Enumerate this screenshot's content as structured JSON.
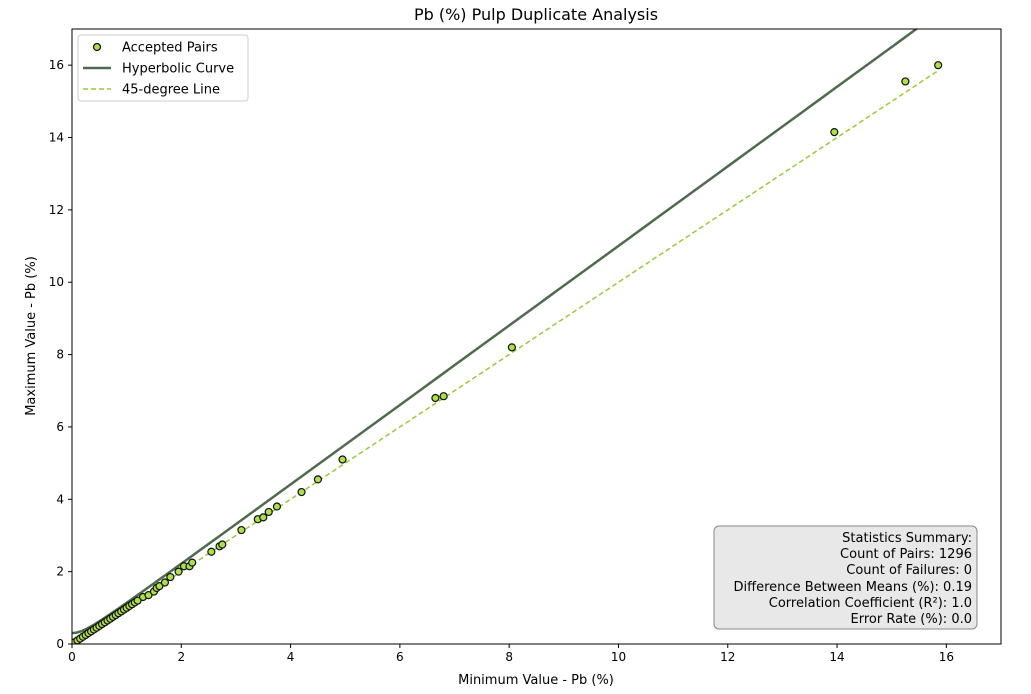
{
  "chart_data": {
    "type": "scatter",
    "title": "Pb (%) Pulp Duplicate Analysis",
    "xlabel": "Minimum Value - Pb (%)",
    "ylabel": "Maximum Value - Pb (%)",
    "xlim": [
      0,
      17
    ],
    "ylim": [
      0,
      17
    ],
    "xticks": [
      0,
      2,
      4,
      6,
      8,
      10,
      12,
      14,
      16
    ],
    "yticks": [
      0,
      2,
      4,
      6,
      8,
      10,
      12,
      14,
      16
    ],
    "grid": false,
    "legend_position": "top-left",
    "legend": [
      {
        "label": "Accepted Pairs",
        "kind": "marker"
      },
      {
        "label": "Hyperbolic Curve",
        "kind": "line"
      },
      {
        "label": "45-degree Line",
        "kind": "dashed"
      }
    ],
    "colors": {
      "points_fill": "#aee04a",
      "points_edge": "#111111",
      "curve": "#4e6b4c",
      "diagonal": "#9ac93c"
    },
    "points": {
      "name": "Accepted Pairs",
      "x": [
        0.05,
        0.1,
        0.15,
        0.2,
        0.25,
        0.3,
        0.35,
        0.4,
        0.45,
        0.5,
        0.55,
        0.6,
        0.65,
        0.7,
        0.75,
        0.8,
        0.85,
        0.9,
        0.95,
        1.0,
        1.05,
        1.1,
        1.15,
        1.2,
        1.3,
        1.4,
        1.5,
        1.55,
        1.6,
        1.7,
        1.8,
        1.95,
        2.05,
        2.15,
        2.2,
        2.55,
        2.7,
        2.75,
        3.1,
        3.4,
        3.5,
        3.6,
        3.75,
        4.2,
        4.5,
        4.95,
        6.65,
        6.8,
        8.05,
        13.95,
        15.25,
        15.85
      ],
      "y": [
        0.05,
        0.1,
        0.15,
        0.2,
        0.25,
        0.3,
        0.35,
        0.4,
        0.45,
        0.5,
        0.55,
        0.6,
        0.65,
        0.7,
        0.75,
        0.8,
        0.85,
        0.9,
        0.95,
        1.0,
        1.05,
        1.1,
        1.15,
        1.2,
        1.3,
        1.35,
        1.45,
        1.55,
        1.6,
        1.7,
        1.85,
        2.0,
        2.15,
        2.15,
        2.25,
        2.55,
        2.7,
        2.75,
        3.15,
        3.45,
        3.5,
        3.65,
        3.8,
        4.2,
        4.55,
        5.1,
        6.8,
        6.85,
        8.2,
        14.15,
        15.55,
        16.0
      ]
    },
    "hyperbolic_curve": {
      "name": "Hyperbolic Curve",
      "formula": "y = sqrt((1.1x)^2 + 0.3^2)"
    },
    "diagonal": {
      "name": "45-degree Line",
      "x": [
        0,
        15.85
      ],
      "y": [
        0,
        15.85
      ]
    },
    "stats_box": {
      "lines": [
        "Statistics Summary:",
        "Count of Pairs: 1296",
        "Count of Failures: 0",
        "Difference Between Means (%): 0.19",
        "Correlation Coefficient (R²): 1.0",
        "Error Rate (%): 0.0"
      ],
      "position": "bottom-right"
    }
  }
}
